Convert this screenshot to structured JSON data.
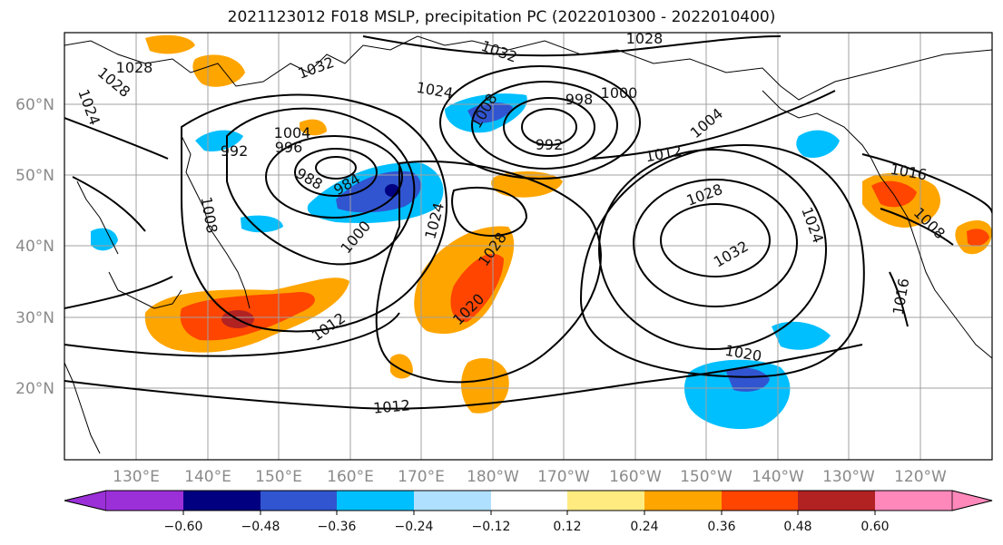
{
  "title": "2021123012 F018 MSLP, precipitation PC (2022010300 - 2022010400)",
  "latitude_labels": [
    "60°N",
    "50°N",
    "40°N",
    "30°N",
    "20°N"
  ],
  "longitude_labels": [
    "130°E",
    "140°E",
    "150°E",
    "160°E",
    "170°E",
    "180°W",
    "170°W",
    "160°W",
    "150°W",
    "140°W",
    "130°W",
    "120°W"
  ],
  "colorbar": {
    "ticks": [
      "−0.60",
      "−0.48",
      "−0.36",
      "−0.24",
      "−0.12",
      "0.12",
      "0.24",
      "0.36",
      "0.48",
      "0.60"
    ],
    "colors": [
      "#9b30d9",
      "#000080",
      "#3155d0",
      "#00bfff",
      "#b0e0ff",
      "#ffffff",
      "#ffeb80",
      "#ffa500",
      "#ff4500",
      "#b22222",
      "#ff88bb"
    ]
  },
  "isobar_labels": [
    "1028",
    "1024",
    "1028",
    "1032",
    "1032",
    "1028",
    "1024",
    "1008",
    "998",
    "1000",
    "992",
    "1004",
    "1012",
    "1004",
    "996",
    "992",
    "988",
    "984",
    "1000",
    "1008",
    "1024",
    "1028",
    "1020",
    "1028",
    "1032",
    "1024",
    "1012",
    "1020",
    "1012",
    "1016",
    "1008",
    "1016"
  ]
}
